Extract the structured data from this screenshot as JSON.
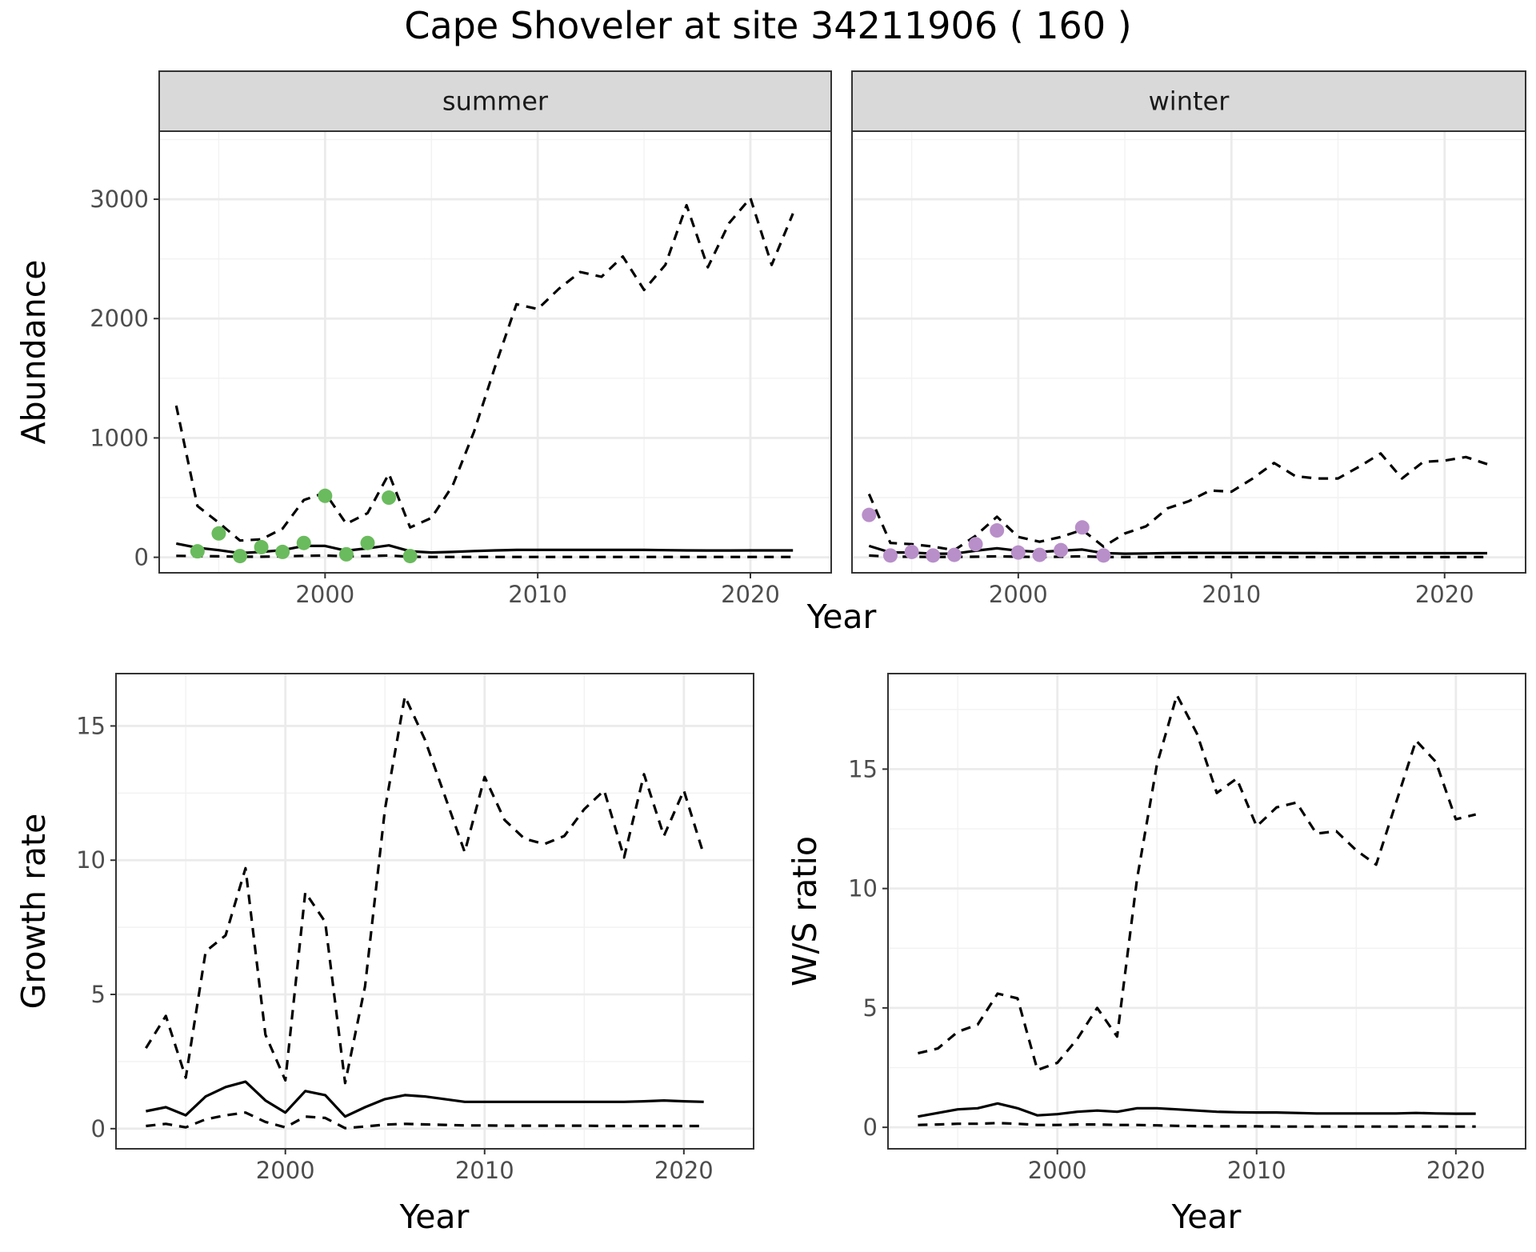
{
  "chart_data": {
    "title": "Cape Shoveler at site 34211906 ( 160 )",
    "colors": {
      "summer_points": "#6abb5d",
      "winter_points": "#b88fc9",
      "lines": "#000000",
      "grid_major": "#ebebeb",
      "grid_minor": "#f2f2f2",
      "strip_fill": "#d9d9d9",
      "panel_border": "#333333"
    },
    "panels": [
      {
        "id": "abundance",
        "type": "line",
        "facets": [
          "summer",
          "winter"
        ],
        "xlabel": "Year",
        "ylabel": "Abundance",
        "xlim": [
          1992.2,
          2023.8
        ],
        "ylim": [
          -130,
          3570
        ],
        "xticks": [
          2000,
          2010,
          2020
        ],
        "yticks": [
          0,
          1000,
          2000,
          3000
        ],
        "series": {
          "summer": {
            "upper_dashed": {
              "x": [
                1993,
                1994,
                1995,
                1996,
                1997,
                1998,
                1999,
                2000,
                2001,
                2002,
                2003,
                2004,
                2005,
                2006,
                2007,
                2008,
                2009,
                2010,
                2011,
                2012,
                2013,
                2014,
                2015,
                2016,
                2017,
                2018,
                2019,
                2020,
                2021,
                2022
              ],
              "y": [
                1270,
                430,
                290,
                140,
                150,
                240,
                480,
                540,
                280,
                370,
                700,
                250,
                330,
                600,
                1050,
                1600,
                2120,
                2080,
                2250,
                2390,
                2350,
                2520,
                2240,
                2450,
                2950,
                2430,
                2800,
                3010,
                2450,
                2880
              ]
            },
            "median_solid": {
              "x": [
                1993,
                1994,
                1995,
                1996,
                1997,
                1998,
                1999,
                2000,
                2001,
                2002,
                2003,
                2004,
                2005,
                2006,
                2007,
                2008,
                2009,
                2010,
                2011,
                2012,
                2013,
                2014,
                2015,
                2016,
                2017,
                2018,
                2019,
                2020,
                2021,
                2022
              ],
              "y": [
                115,
                80,
                60,
                35,
                45,
                60,
                95,
                95,
                55,
                75,
                100,
                50,
                40,
                45,
                52,
                58,
                62,
                62,
                62,
                62,
                62,
                62,
                62,
                60,
                58,
                57,
                57,
                58,
                58,
                58
              ]
            },
            "lower_dashed": {
              "x": [
                1993,
                1994,
                1995,
                1996,
                1997,
                1998,
                1999,
                2000,
                2001,
                2002,
                2003,
                2004,
                2005,
                2006,
                2007,
                2008,
                2009,
                2010,
                2011,
                2012,
                2013,
                2014,
                2015,
                2016,
                2017,
                2018,
                2019,
                2020,
                2021,
                2022
              ],
              "y": [
                12,
                10,
                8,
                5,
                5,
                8,
                12,
                15,
                8,
                10,
                15,
                5,
                3,
                3,
                3,
                3,
                3,
                3,
                3,
                3,
                3,
                3,
                3,
                3,
                3,
                3,
                3,
                3,
                3,
                3
              ]
            },
            "observed": {
              "x": [
                1994,
                1995,
                1996,
                1997,
                1998,
                1999,
                2000,
                2001,
                2002,
                2003,
                2004
              ],
              "y": [
                50,
                200,
                10,
                85,
                45,
                120,
                515,
                25,
                120,
                500,
                10
              ]
            }
          },
          "winter": {
            "upper_dashed": {
              "x": [
                1993,
                1994,
                1995,
                1996,
                1997,
                1998,
                1999,
                2000,
                2001,
                2002,
                2003,
                2004,
                2005,
                2006,
                2007,
                2008,
                2009,
                2010,
                2011,
                2012,
                2013,
                2014,
                2015,
                2016,
                2017,
                2018,
                2019,
                2020,
                2021,
                2022
              ],
              "y": [
                530,
                120,
                110,
                90,
                60,
                180,
                340,
                170,
                130,
                170,
                230,
                90,
                200,
                260,
                410,
                470,
                560,
                550,
                660,
                790,
                680,
                660,
                660,
                760,
                870,
                660,
                800,
                810,
                840,
                780
              ]
            },
            "median_solid": {
              "x": [
                1993,
                1994,
                1995,
                1996,
                1997,
                1998,
                1999,
                2000,
                2001,
                2002,
                2003,
                2004,
                2005,
                2006,
                2007,
                2008,
                2009,
                2010,
                2011,
                2012,
                2013,
                2014,
                2015,
                2016,
                2017,
                2018,
                2019,
                2020,
                2021,
                2022
              ],
              "y": [
                95,
                40,
                40,
                30,
                30,
                55,
                75,
                55,
                45,
                55,
                65,
                35,
                30,
                32,
                35,
                36,
                36,
                36,
                36,
                36,
                35,
                35,
                34,
                34,
                34,
                34,
                34,
                34,
                34,
                34
              ]
            },
            "lower_dashed": {
              "x": [
                1993,
                1994,
                1995,
                1996,
                1997,
                1998,
                1999,
                2000,
                2001,
                2002,
                2003,
                2004,
                2005,
                2006,
                2007,
                2008,
                2009,
                2010,
                2011,
                2012,
                2013,
                2014,
                2015,
                2016,
                2017,
                2018,
                2019,
                2020,
                2021,
                2022
              ],
              "y": [
                15,
                5,
                5,
                3,
                3,
                5,
                8,
                5,
                3,
                5,
                8,
                2,
                2,
                2,
                2,
                2,
                2,
                2,
                2,
                2,
                2,
                2,
                2,
                2,
                2,
                2,
                2,
                2,
                2,
                2
              ]
            },
            "observed": {
              "x": [
                1993,
                1994,
                1995,
                1996,
                1997,
                1998,
                1999,
                2000,
                2001,
                2002,
                2003,
                2004
              ],
              "y": [
                355,
                15,
                45,
                15,
                20,
                110,
                225,
                40,
                20,
                60,
                250,
                15
              ]
            }
          }
        }
      },
      {
        "id": "growth",
        "type": "line",
        "xlabel": "Year",
        "ylabel": "Growth rate",
        "xlim": [
          1991.5,
          2023.5
        ],
        "ylim": [
          -0.75,
          16.95
        ],
        "xticks": [
          2000,
          2010,
          2020
        ],
        "yticks": [
          0,
          5,
          10,
          15
        ],
        "series": {
          "upper_dashed": {
            "x": [
              1993,
              1994,
              1995,
              1996,
              1997,
              1998,
              1999,
              2000,
              2001,
              2002,
              2003,
              2004,
              2005,
              2006,
              2007,
              2008,
              2009,
              2010,
              2011,
              2012,
              2013,
              2014,
              2015,
              2016,
              2017,
              2018,
              2019,
              2020,
              2021
            ],
            "y": [
              3.0,
              4.2,
              1.9,
              6.6,
              7.2,
              9.7,
              3.5,
              1.8,
              8.8,
              7.7,
              1.7,
              5.3,
              11.9,
              16.1,
              14.5,
              12.4,
              10.3,
              13.1,
              11.5,
              10.8,
              10.6,
              10.9,
              11.9,
              12.6,
              10.1,
              13.2,
              10.9,
              12.6,
              10.2
            ]
          },
          "median_solid": {
            "x": [
              1993,
              1994,
              1995,
              1996,
              1997,
              1998,
              1999,
              2000,
              2001,
              2002,
              2003,
              2004,
              2005,
              2006,
              2007,
              2008,
              2009,
              2010,
              2011,
              2012,
              2013,
              2014,
              2015,
              2016,
              2017,
              2018,
              2019,
              2020,
              2021
            ],
            "y": [
              0.65,
              0.8,
              0.5,
              1.2,
              1.55,
              1.75,
              1.05,
              0.6,
              1.4,
              1.25,
              0.45,
              0.8,
              1.1,
              1.25,
              1.2,
              1.1,
              1.0,
              1.0,
              1.0,
              1.0,
              1.0,
              1.0,
              1.0,
              1.0,
              1.0,
              1.02,
              1.05,
              1.02,
              1.0
            ]
          },
          "lower_dashed": {
            "x": [
              1993,
              1994,
              1995,
              1996,
              1997,
              1998,
              1999,
              2000,
              2001,
              2002,
              2003,
              2004,
              2005,
              2006,
              2007,
              2008,
              2009,
              2010,
              2011,
              2012,
              2013,
              2014,
              2015,
              2016,
              2017,
              2018,
              2019,
              2020,
              2021
            ],
            "y": [
              0.1,
              0.18,
              0.05,
              0.35,
              0.5,
              0.6,
              0.25,
              0.05,
              0.45,
              0.4,
              0.02,
              0.08,
              0.15,
              0.18,
              0.16,
              0.14,
              0.12,
              0.12,
              0.11,
              0.11,
              0.11,
              0.11,
              0.11,
              0.1,
              0.1,
              0.1,
              0.1,
              0.1,
              0.1
            ]
          }
        }
      },
      {
        "id": "ws_ratio",
        "type": "line",
        "xlabel": "Year",
        "ylabel": "W/S ratio",
        "xlim": [
          1991.5,
          2023.5
        ],
        "ylim": [
          -0.9,
          19.0
        ],
        "xticks": [
          2000,
          2010,
          2020
        ],
        "yticks": [
          0,
          5,
          10,
          15
        ],
        "series": {
          "upper_dashed": {
            "x": [
              1993,
              1994,
              1995,
              1996,
              1997,
              1998,
              1999,
              2000,
              2001,
              2002,
              2003,
              2004,
              2005,
              2006,
              2007,
              2008,
              2009,
              2010,
              2011,
              2012,
              2013,
              2014,
              2015,
              2016,
              2017,
              2018,
              2019,
              2020,
              2021
            ],
            "y": [
              3.1,
              3.3,
              4.0,
              4.3,
              5.6,
              5.4,
              2.4,
              2.7,
              3.7,
              5.0,
              3.8,
              10.4,
              15.2,
              18.1,
              16.5,
              14.0,
              14.6,
              12.6,
              13.4,
              13.6,
              12.3,
              12.4,
              11.6,
              11.0,
              13.6,
              16.2,
              15.3,
              12.9,
              13.1
            ]
          },
          "median_solid": {
            "x": [
              1993,
              1994,
              1995,
              1996,
              1997,
              1998,
              1999,
              2000,
              2001,
              2002,
              2003,
              2004,
              2005,
              2006,
              2007,
              2008,
              2009,
              2010,
              2011,
              2012,
              2013,
              2014,
              2015,
              2016,
              2017,
              2018,
              2019,
              2020,
              2021
            ],
            "y": [
              0.45,
              0.6,
              0.75,
              0.8,
              1.0,
              0.8,
              0.5,
              0.55,
              0.65,
              0.7,
              0.65,
              0.8,
              0.8,
              0.75,
              0.7,
              0.65,
              0.63,
              0.62,
              0.62,
              0.6,
              0.58,
              0.58,
              0.58,
              0.58,
              0.58,
              0.6,
              0.58,
              0.57,
              0.57
            ]
          },
          "lower_dashed": {
            "x": [
              1993,
              1994,
              1995,
              1996,
              1997,
              1998,
              1999,
              2000,
              2001,
              2002,
              2003,
              2004,
              2005,
              2006,
              2007,
              2008,
              2009,
              2010,
              2011,
              2012,
              2013,
              2014,
              2015,
              2016,
              2017,
              2018,
              2019,
              2020,
              2021
            ],
            "y": [
              0.1,
              0.12,
              0.15,
              0.15,
              0.18,
              0.15,
              0.1,
              0.1,
              0.12,
              0.12,
              0.1,
              0.1,
              0.08,
              0.06,
              0.05,
              0.04,
              0.04,
              0.04,
              0.03,
              0.03,
              0.03,
              0.03,
              0.03,
              0.03,
              0.03,
              0.03,
              0.03,
              0.03,
              0.03
            ]
          }
        }
      }
    ]
  }
}
